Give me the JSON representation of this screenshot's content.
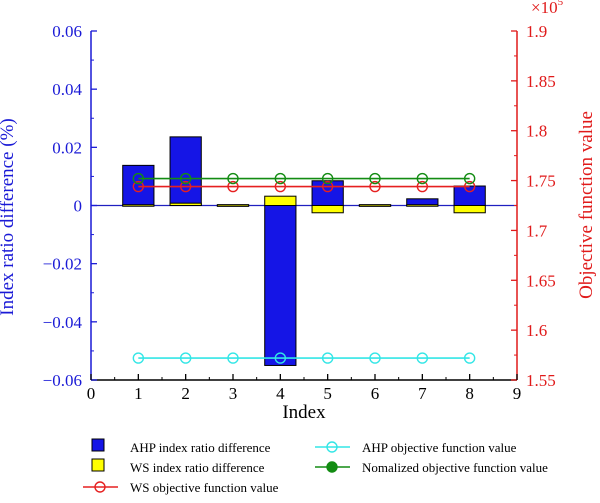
{
  "chart_data": {
    "type": "bar",
    "title": "",
    "xlabel": "Index",
    "ylabel": "Index ratio difference (%)",
    "y2label": "Objective function value",
    "y2_multiplier": "×10",
    "y2_multiplier_exp": "5",
    "x": [
      1,
      2,
      3,
      4,
      5,
      6,
      7,
      8
    ],
    "xlim": [
      0,
      9
    ],
    "xticks": [
      "0",
      "1",
      "2",
      "3",
      "4",
      "5",
      "6",
      "7",
      "8",
      "9"
    ],
    "ylim": [
      -0.06,
      0.06
    ],
    "yticks": [
      "−0.06",
      "−0.04",
      "−0.02",
      "0",
      "0.02",
      "0.04",
      "0.06"
    ],
    "y2lim": [
      1.55,
      1.9
    ],
    "y2ticks": [
      "1.55",
      "1.6",
      "1.65",
      "1.7",
      "1.75",
      "1.8",
      "1.85",
      "1.9"
    ],
    "bar_series": [
      {
        "name": "AHP index ratio difference",
        "color": "#1515e6",
        "values": [
          0.0138,
          0.0236,
          0.0,
          -0.055,
          0.0085,
          0.0,
          0.0023,
          0.0067
        ]
      },
      {
        "name": "WS index ratio difference",
        "color": "#ffff00",
        "values": [
          0.0,
          0.0008,
          0.0,
          0.0032,
          -0.0025,
          0.0,
          0.0,
          -0.0025
        ]
      }
    ],
    "line_series": [
      {
        "name": "AHP objective function value",
        "color": "#33e6e6",
        "marker": "open-circle",
        "values": [
          1.572,
          1.572,
          1.572,
          1.572,
          1.572,
          1.572,
          1.572,
          1.572
        ]
      },
      {
        "name": "WS objective function value",
        "color": "#e62020",
        "marker": "open-circle",
        "values": [
          1.744,
          1.744,
          1.744,
          1.744,
          1.744,
          1.744,
          1.744,
          1.744
        ]
      },
      {
        "name": "Nomalized objective function value",
        "color": "#138c13",
        "marker": "open-circle",
        "values": [
          1.752,
          1.752,
          1.752,
          1.752,
          1.752,
          1.752,
          1.752,
          1.752
        ]
      }
    ],
    "legend": {
      "placement": "bottom",
      "items": [
        {
          "label": "AHP index ratio difference",
          "kind": "bar",
          "color": "#1515e6"
        },
        {
          "label": "AHP objective function value",
          "kind": "line-open",
          "color": "#33e6e6"
        },
        {
          "label": "WS index ratio difference",
          "kind": "bar",
          "color": "#ffff00"
        },
        {
          "label": "Nomalized objective function value",
          "kind": "line-filled",
          "color": "#138c13"
        },
        {
          "label": "WS objective function value",
          "kind": "line-open",
          "color": "#e62020"
        }
      ]
    },
    "colors": {
      "left_axis": "#1a1ad6",
      "right_axis": "#e01a1a",
      "zero_line": "#2020c0"
    }
  }
}
